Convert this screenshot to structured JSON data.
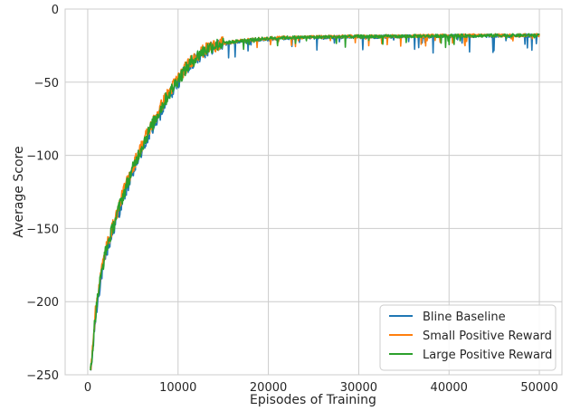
{
  "chart_data": {
    "type": "line",
    "title": "",
    "xlabel": "Episodes of Training",
    "ylabel": "Average Score",
    "xlim": [
      -2500,
      52500
    ],
    "ylim": [
      -250,
      0
    ],
    "xticks": [
      0,
      10000,
      20000,
      30000,
      40000,
      50000
    ],
    "yticks": [
      0,
      -50,
      -100,
      -150,
      -200,
      -250
    ],
    "xtick_labels": [
      "0",
      "10000",
      "20000",
      "30000",
      "40000",
      "50000"
    ],
    "ytick_labels": [
      "0",
      "−50",
      "−100",
      "−150",
      "−200",
      "−250"
    ],
    "grid": true,
    "legend_position": "bottom-right",
    "series": [
      {
        "name": "Bline Baseline",
        "color": "#1f77b4",
        "x": [
          300,
          500,
          800,
          1200,
          1600,
          2000,
          2500,
          3000,
          3500,
          4000,
          4500,
          5000,
          5500,
          6000,
          6500,
          7000,
          7500,
          8000,
          8500,
          9000,
          9500,
          10000,
          10500,
          11000,
          11500,
          12000,
          12500,
          13000,
          13500,
          14000,
          14500,
          15000,
          16000,
          17000,
          18000,
          19000,
          20000,
          22000,
          24000,
          26000,
          28000,
          30000,
          32000,
          34000,
          36000,
          38000,
          40000,
          42000,
          44000,
          46000,
          48000,
          50000
        ],
        "y": [
          -250,
          -238,
          -215,
          -195,
          -180,
          -168,
          -158,
          -148,
          -138,
          -128,
          -120,
          -112,
          -104,
          -97,
          -90,
          -84,
          -78,
          -72,
          -66,
          -60,
          -55,
          -50,
          -45,
          -41,
          -37,
          -34,
          -31,
          -29,
          -27,
          -26,
          -25,
          -24,
          -23,
          -22,
          -21.5,
          -21,
          -20.5,
          -20,
          -19.5,
          -19.5,
          -19.2,
          -19,
          -19,
          -18.8,
          -18.8,
          -18.6,
          -18.5,
          -18.4,
          -18.3,
          -18.2,
          -18.2,
          -18
        ]
      },
      {
        "name": "Small Positive Reward",
        "color": "#ff7f0e",
        "x": [
          300,
          500,
          800,
          1200,
          1600,
          2000,
          2500,
          3000,
          3500,
          4000,
          4500,
          5000,
          5500,
          6000,
          6500,
          7000,
          7500,
          8000,
          8500,
          9000,
          9500,
          10000,
          10500,
          11000,
          11500,
          12000,
          12500,
          13000,
          13500,
          14000,
          14500,
          15000,
          16000,
          17000,
          18000,
          19000,
          20000,
          22000,
          24000,
          26000,
          28000,
          30000,
          32000,
          34000,
          36000,
          38000,
          40000,
          42000,
          44000,
          46000,
          48000,
          50000
        ],
        "y": [
          -247,
          -232,
          -210,
          -190,
          -176,
          -164,
          -154,
          -144,
          -134,
          -124,
          -116,
          -108,
          -100,
          -93,
          -86,
          -80,
          -74,
          -68,
          -62,
          -57,
          -52,
          -47,
          -43,
          -39,
          -35,
          -32,
          -30,
          -28,
          -26,
          -25,
          -24,
          -23.5,
          -22.5,
          -21.5,
          -21,
          -20.5,
          -20,
          -19.5,
          -19.2,
          -19,
          -18.8,
          -18.7,
          -18.6,
          -18.5,
          -18.4,
          -18.3,
          -18.2,
          -18.1,
          -18,
          -18,
          -17.9,
          -17.8
        ]
      },
      {
        "name": "Large Positive Reward",
        "color": "#2ca02c",
        "x": [
          300,
          500,
          800,
          1200,
          1600,
          2000,
          2500,
          3000,
          3500,
          4000,
          4500,
          5000,
          5500,
          6000,
          6500,
          7000,
          7500,
          8000,
          8500,
          9000,
          9500,
          10000,
          10500,
          11000,
          11500,
          12000,
          12500,
          13000,
          13500,
          14000,
          14500,
          15000,
          16000,
          17000,
          18000,
          19000,
          20000,
          22000,
          24000,
          26000,
          28000,
          30000,
          32000,
          34000,
          36000,
          38000,
          40000,
          42000,
          44000,
          46000,
          48000,
          50000
        ],
        "y": [
          -249,
          -235,
          -212,
          -192,
          -178,
          -165,
          -155,
          -145,
          -135,
          -126,
          -117,
          -109,
          -101,
          -94,
          -87,
          -81,
          -75,
          -69,
          -63,
          -58,
          -53,
          -48,
          -44,
          -40,
          -36,
          -33,
          -30,
          -28,
          -26,
          -25,
          -24,
          -23,
          -22.5,
          -21.5,
          -21,
          -20.5,
          -20,
          -19.5,
          -19.3,
          -19.1,
          -18.9,
          -18.8,
          -18.7,
          -18.6,
          -18.5,
          -18.4,
          -18.3,
          -18.2,
          -18.1,
          -18,
          -18,
          -17.9
        ]
      }
    ]
  }
}
